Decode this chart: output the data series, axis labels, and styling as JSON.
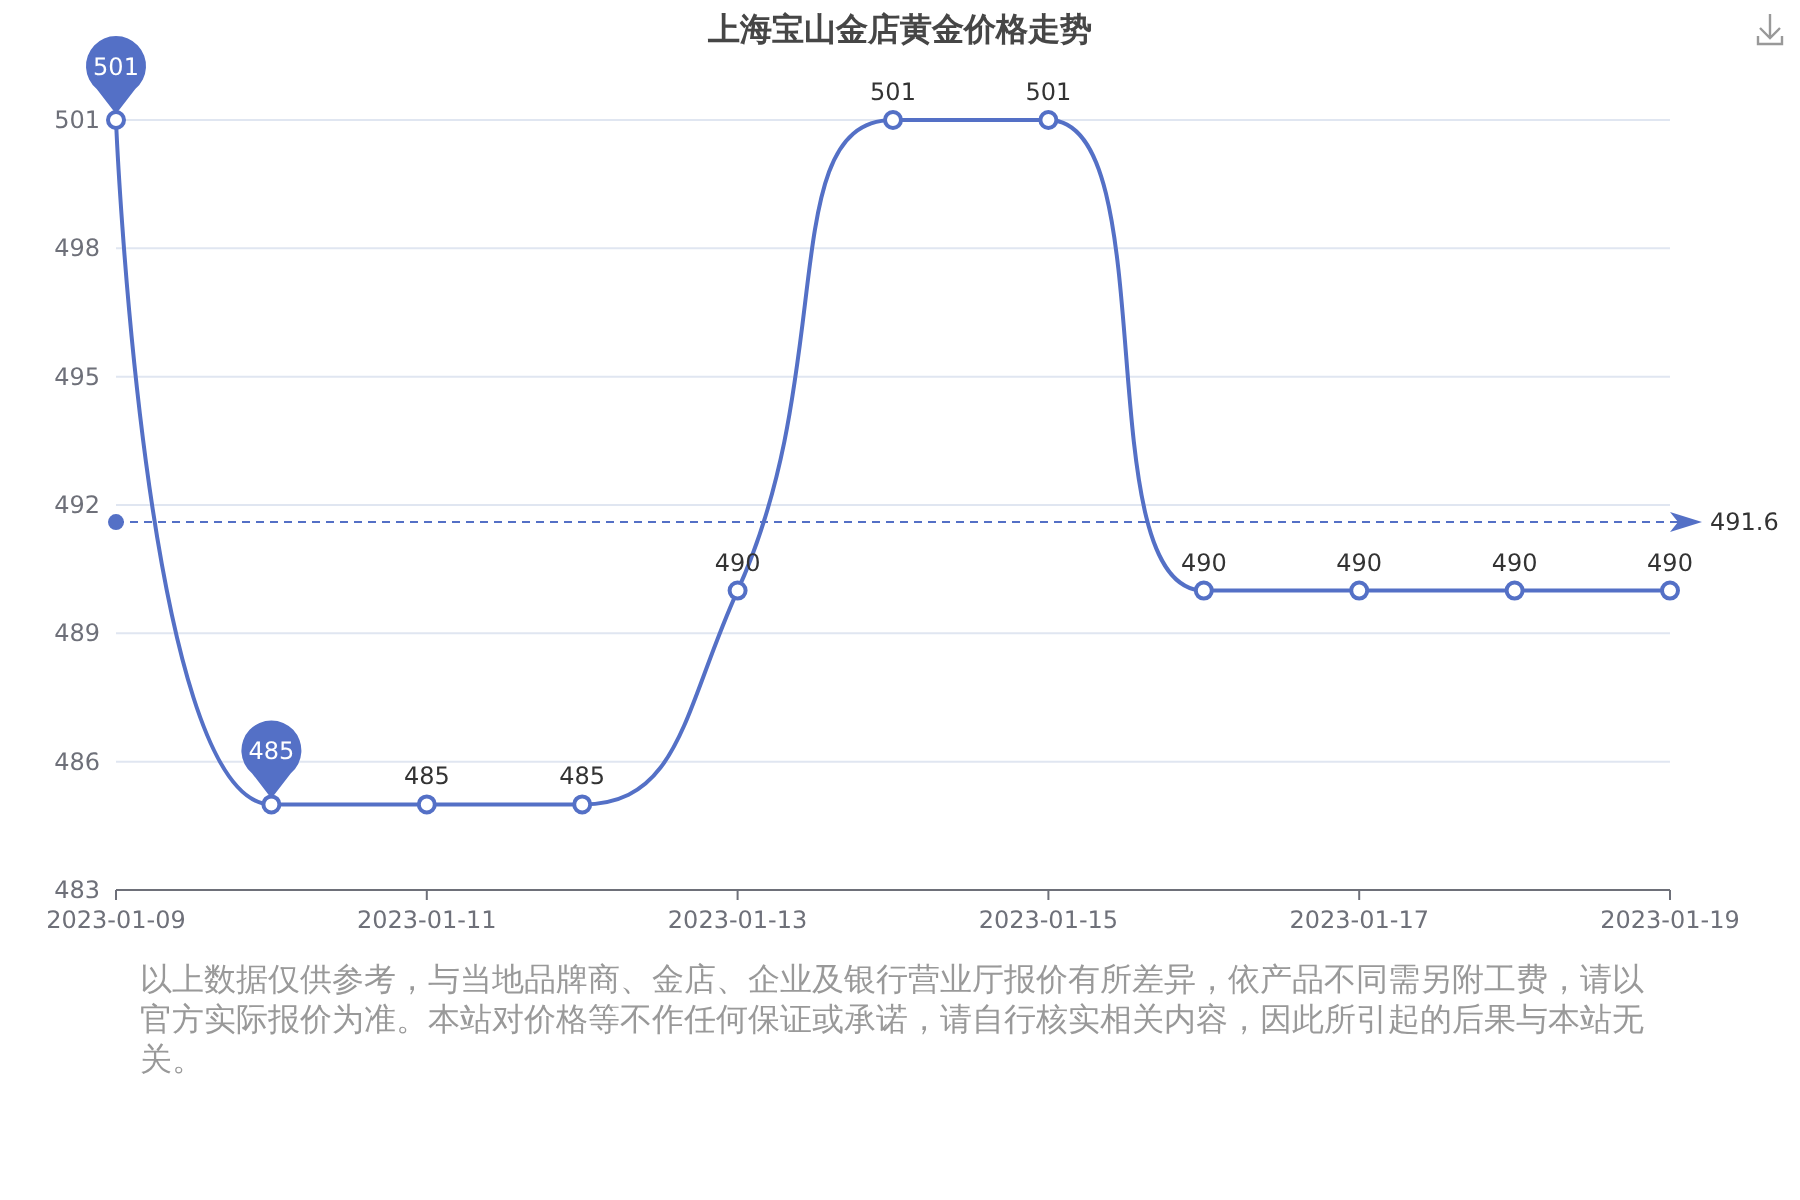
{
  "chart_data": {
    "type": "line",
    "title": "上海宝山金店黄金价格走势",
    "x": [
      "2023-01-09",
      "2023-01-10",
      "2023-01-11",
      "2023-01-12",
      "2023-01-13",
      "2023-01-14",
      "2023-01-15",
      "2023-01-16",
      "2023-01-17",
      "2023-01-18",
      "2023-01-19"
    ],
    "series": [
      {
        "color": "#5470c6",
        "values": [
          501,
          485,
          485,
          485,
          490,
          501,
          501,
          490,
          490,
          490,
          490
        ],
        "value_labels": [
          null,
          null,
          "485",
          "485",
          "490",
          "501",
          "501",
          "490",
          "490",
          "490",
          "490"
        ]
      }
    ],
    "xlim": [
      "2023-01-09",
      "2023-01-19"
    ],
    "xticks": [
      "2023-01-09",
      "2023-01-11",
      "2023-01-13",
      "2023-01-15",
      "2023-01-17",
      "2023-01-19"
    ],
    "ylim": [
      483,
      501
    ],
    "yticks": [
      483,
      486,
      489,
      492,
      495,
      498,
      501
    ],
    "grid": "y",
    "marker": "circle",
    "line_style": "solid",
    "ref_lines": [
      {
        "axis": "y",
        "value": 491.6,
        "label": "491.6",
        "color": "#5470c6",
        "line_style": "dashed"
      }
    ],
    "annotations": [
      {
        "text": "501",
        "x": "2023-01-09",
        "y": 501
      },
      {
        "text": "485",
        "x": "2023-01-10",
        "y": 485
      },
      "以上数据仅供参考，与当地品牌商、金店、企业及银行营业厅报价有所差异，依产品不同需另附工费，请以官方实际报价为准。本站对价格等不作任何保证或承诺，请自行核实相关内容，因此所引起的后果与本站无关。"
    ]
  }
}
